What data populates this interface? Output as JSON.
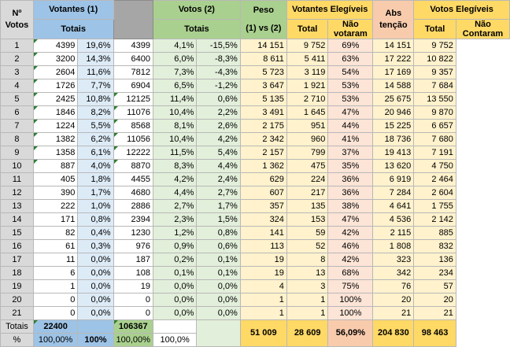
{
  "headers": {
    "n_votos_line1": "Nº",
    "n_votos_line2": "Votos",
    "votantes1": "Votantes (1)",
    "votantes1_totais": "Totais",
    "votos2": "Votos (2)",
    "votos2_totais": "Totais",
    "peso": "Peso",
    "peso_sub": "(1) vs (2)",
    "votantes_elegiveis": "Votantes Elegíveis",
    "ve_total": "Total",
    "ve_nao_line1": "Não",
    "ve_nao_line2": "votaram",
    "abs_line1": "Abs",
    "abs_line2": "tenção",
    "votos_elegiveis": "Votos Elegíveis",
    "vt_total": "Total",
    "vt_nao_line1": "Não",
    "vt_nao_line2": "Contaram"
  },
  "rows": [
    [
      "1",
      "4399",
      "19,6%",
      "4399",
      "4,1%",
      "-15,5%",
      "14 151",
      "9 752",
      "69%",
      "14 151",
      "9 752"
    ],
    [
      "2",
      "3200",
      "14,3%",
      "6400",
      "6,0%",
      "-8,3%",
      "8 611",
      "5 411",
      "63%",
      "17 222",
      "10 822"
    ],
    [
      "3",
      "2604",
      "11,6%",
      "7812",
      "7,3%",
      "-4,3%",
      "5 723",
      "3 119",
      "54%",
      "17 169",
      "9 357"
    ],
    [
      "4",
      "1726",
      "7,7%",
      "6904",
      "6,5%",
      "-1,2%",
      "3 647",
      "1 921",
      "53%",
      "14 588",
      "7 684"
    ],
    [
      "5",
      "2425",
      "10,8%",
      "12125",
      "11,4%",
      "0,6%",
      "5 135",
      "2 710",
      "53%",
      "25 675",
      "13 550"
    ],
    [
      "6",
      "1846",
      "8,2%",
      "11076",
      "10,4%",
      "2,2%",
      "3 491",
      "1 645",
      "47%",
      "20 946",
      "9 870"
    ],
    [
      "7",
      "1224",
      "5,5%",
      "8568",
      "8,1%",
      "2,6%",
      "2 175",
      "951",
      "44%",
      "15 225",
      "6 657"
    ],
    [
      "8",
      "1382",
      "6,2%",
      "11056",
      "10,4%",
      "4,2%",
      "2 342",
      "960",
      "41%",
      "18 736",
      "7 680"
    ],
    [
      "9",
      "1358",
      "6,1%",
      "12222",
      "11,5%",
      "5,4%",
      "2 157",
      "799",
      "37%",
      "19 413",
      "7 191"
    ],
    [
      "10",
      "887",
      "4,0%",
      "8870",
      "8,3%",
      "4,4%",
      "1 362",
      "475",
      "35%",
      "13 620",
      "4 750"
    ],
    [
      "11",
      "405",
      "1,8%",
      "4455",
      "4,2%",
      "2,4%",
      "629",
      "224",
      "36%",
      "6 919",
      "2 464"
    ],
    [
      "12",
      "390",
      "1,7%",
      "4680",
      "4,4%",
      "2,7%",
      "607",
      "217",
      "36%",
      "7 284",
      "2 604"
    ],
    [
      "13",
      "222",
      "1,0%",
      "2886",
      "2,7%",
      "1,7%",
      "357",
      "135",
      "38%",
      "4 641",
      "1 755"
    ],
    [
      "14",
      "171",
      "0,8%",
      "2394",
      "2,3%",
      "1,5%",
      "324",
      "153",
      "47%",
      "4 536",
      "2 142"
    ],
    [
      "15",
      "82",
      "0,4%",
      "1230",
      "1,2%",
      "0,8%",
      "141",
      "59",
      "42%",
      "2 115",
      "885"
    ],
    [
      "16",
      "61",
      "0,3%",
      "976",
      "0,9%",
      "0,6%",
      "113",
      "52",
      "46%",
      "1 808",
      "832"
    ],
    [
      "17",
      "11",
      "0,0%",
      "187",
      "0,2%",
      "0,1%",
      "19",
      "8",
      "42%",
      "323",
      "136"
    ],
    [
      "18",
      "6",
      "0,0%",
      "108",
      "0,1%",
      "0,1%",
      "19",
      "13",
      "68%",
      "342",
      "234"
    ],
    [
      "19",
      "1",
      "0,0%",
      "19",
      "0,0%",
      "0,0%",
      "4",
      "3",
      "75%",
      "76",
      "57"
    ],
    [
      "20",
      "0",
      "0,0%",
      "0",
      "0,0%",
      "0,0%",
      "1",
      "1",
      "100%",
      "20",
      "20"
    ],
    [
      "21",
      "0",
      "0,0%",
      "0",
      "0,0%",
      "0,0%",
      "1",
      "1",
      "100%",
      "21",
      "21"
    ]
  ],
  "totals": {
    "label": "Totais",
    "votantes1": "22400",
    "votos2": "106367",
    "ve_total": "51 009",
    "ve_nao": "28 609",
    "abs": "56,09%",
    "vt_total": "204 830",
    "vt_nao": "98 463"
  },
  "percent": {
    "label": "%",
    "v1_a": "100,00%",
    "v1_b": "100%",
    "v2_a": "100,00%",
    "v2_b": "100,0%"
  }
}
